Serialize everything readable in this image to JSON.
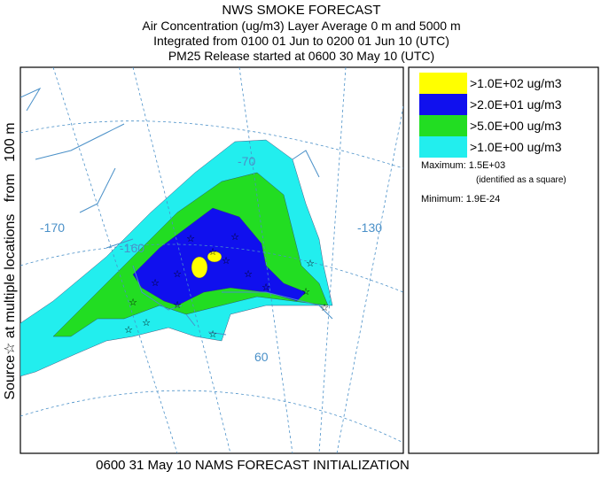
{
  "header": {
    "lines": [
      "NWS SMOKE FORECAST",
      "Air Concentration (ug/m3) Layer Average    0 m and  5000 m",
      "Integrated from 0100 01 Jun to 0200 01 Jun 10 (UTC)",
      "PM25 Release started at 0600 30 May 10 (UTC)"
    ]
  },
  "side_label": "Source☆ at multiple locations   from   100 m",
  "footer": "0600 31 May 10 NAMS FORECAST INITIALIZATION",
  "map": {
    "labels": [
      "-170",
      "-160",
      "-70",
      "-130",
      "60"
    ]
  },
  "legend": {
    "items": [
      {
        "label": ">1.0E+02 ug/m3",
        "color": "#ffff00"
      },
      {
        "label": ">2.0E+01 ug/m3",
        "color": "#1010ee"
      },
      {
        "label": ">5.0E+00 ug/m3",
        "color": "#22dd22"
      },
      {
        "label": ">1.0E+00 ug/m3",
        "color": "#22eeee"
      }
    ],
    "maximum": "Maximum: 1.5E+03",
    "maximum_note": "(identified as a square)",
    "minimum": "Minimum: 1.9E-24"
  }
}
